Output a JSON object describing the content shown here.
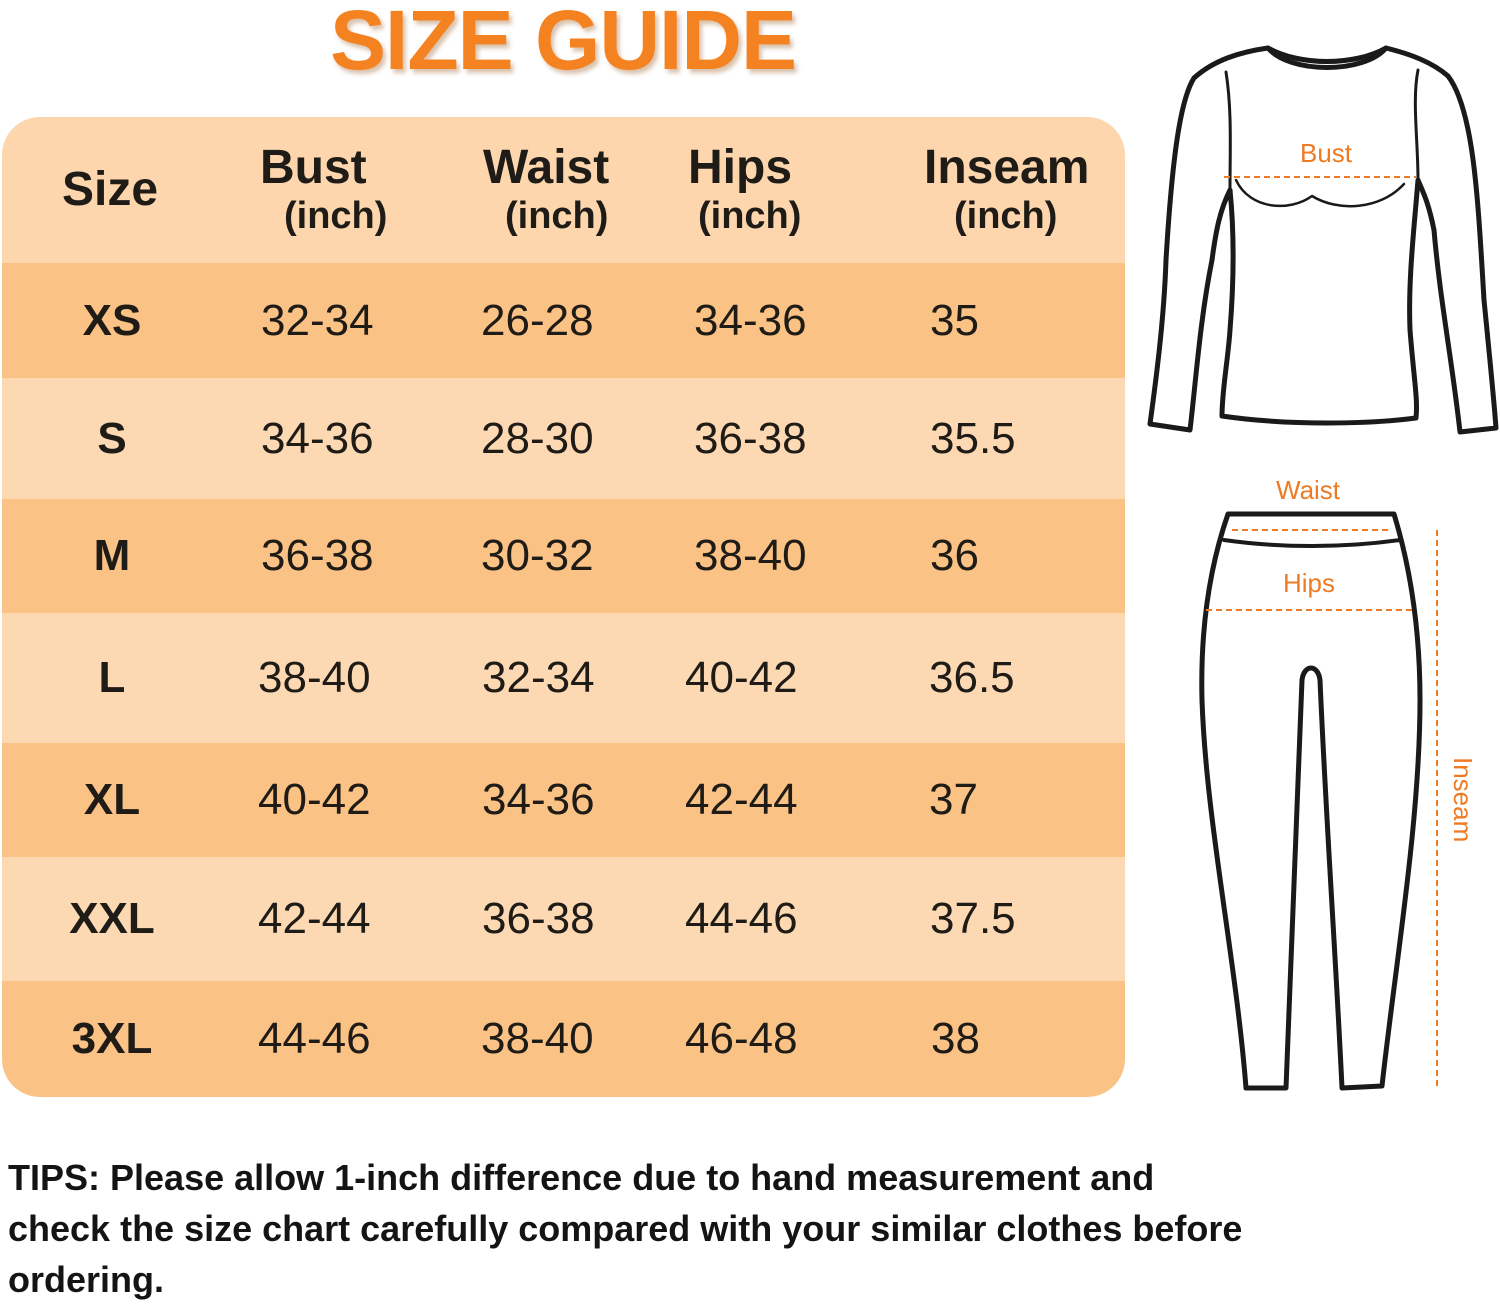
{
  "title": "SIZE GUIDE",
  "colors": {
    "accent": "#f58220",
    "header_bg": "#fdd6ad",
    "row_dark": "#fbc285",
    "row_light": "#fdd9b3"
  },
  "table": {
    "columns": [
      {
        "label": "Size",
        "unit": ""
      },
      {
        "label": "Bust",
        "unit": "(inch)"
      },
      {
        "label": "Waist",
        "unit": "(inch)"
      },
      {
        "label": "Hips",
        "unit": "(inch)"
      },
      {
        "label": "Inseam",
        "unit": "(inch)"
      }
    ],
    "rows": [
      {
        "size": "XS",
        "bust": "32-34",
        "waist": "26-28",
        "hips": "34-36",
        "inseam": "35"
      },
      {
        "size": "S",
        "bust": "34-36",
        "waist": "28-30",
        "hips": "36-38",
        "inseam": "35.5"
      },
      {
        "size": "M",
        "bust": "36-38",
        "waist": "30-32",
        "hips": "38-40",
        "inseam": "36"
      },
      {
        "size": "L",
        "bust": "38-40",
        "waist": "32-34",
        "hips": "40-42",
        "inseam": "36.5"
      },
      {
        "size": "XL",
        "bust": "40-42",
        "waist": "34-36",
        "hips": "42-44",
        "inseam": "37"
      },
      {
        "size": "XXL",
        "bust": "42-44",
        "waist": "36-38",
        "hips": "44-46",
        "inseam": "37.5"
      },
      {
        "size": "3XL",
        "bust": "44-46",
        "waist": "38-40",
        "hips": "46-48",
        "inseam": "38"
      }
    ]
  },
  "figure": {
    "bust_label": "Bust",
    "waist_label": "Waist",
    "hips_label": "Hips",
    "inseam_label": "Inseam"
  },
  "tips": "TIPS: Please allow 1-inch difference due to hand measurement and check the size chart carefully compared with your similar clothes before ordering."
}
